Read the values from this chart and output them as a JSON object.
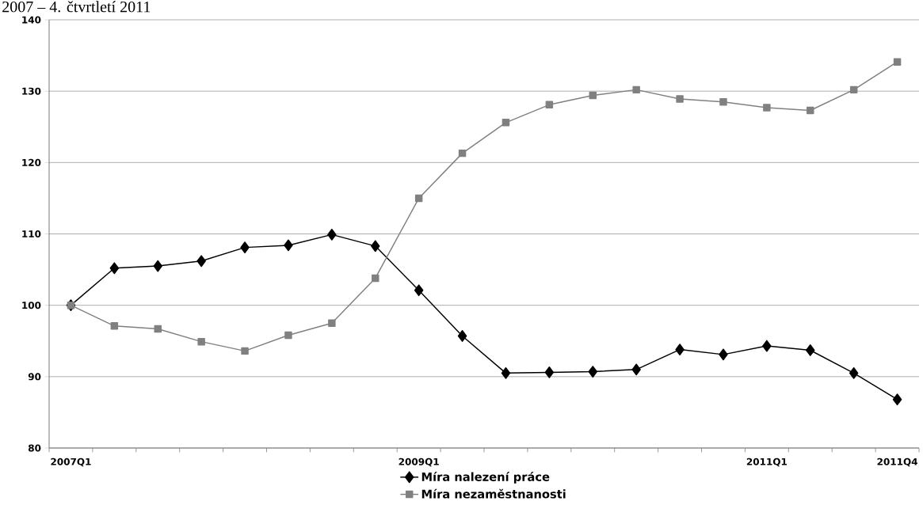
{
  "chart_data": {
    "type": "line",
    "title": "2007 – 4. čtvrtletí 2011",
    "categories": [
      "2007Q1",
      null,
      null,
      null,
      null,
      null,
      null,
      null,
      "2009Q1",
      null,
      null,
      null,
      null,
      null,
      null,
      null,
      "2011Q1",
      null,
      null,
      "2011Q4"
    ],
    "series": [
      {
        "name": "Míra nalezení práce",
        "color": "#000000",
        "marker": "diamond",
        "values": [
          100,
          105.2,
          105.5,
          106.2,
          108.1,
          108.4,
          109.9,
          108.3,
          102.1,
          95.7,
          90.5,
          90.6,
          90.7,
          91.0,
          93.8,
          93.1,
          94.3,
          93.7,
          90.5,
          86.8
        ]
      },
      {
        "name": "Míra nezaměstnanosti",
        "color": "#808080",
        "marker": "square",
        "values": [
          100,
          97.1,
          96.7,
          94.9,
          93.6,
          95.8,
          97.5,
          103.8,
          115.0,
          121.3,
          125.6,
          128.1,
          129.4,
          130.2,
          128.9,
          128.5,
          127.7,
          127.3,
          130.2,
          134.1
        ]
      }
    ],
    "ylim": [
      80,
      140
    ],
    "yticks": [
      80,
      90,
      100,
      110,
      120,
      130,
      140
    ],
    "grid": "y",
    "legend": "bottom",
    "line_style": "solid"
  }
}
